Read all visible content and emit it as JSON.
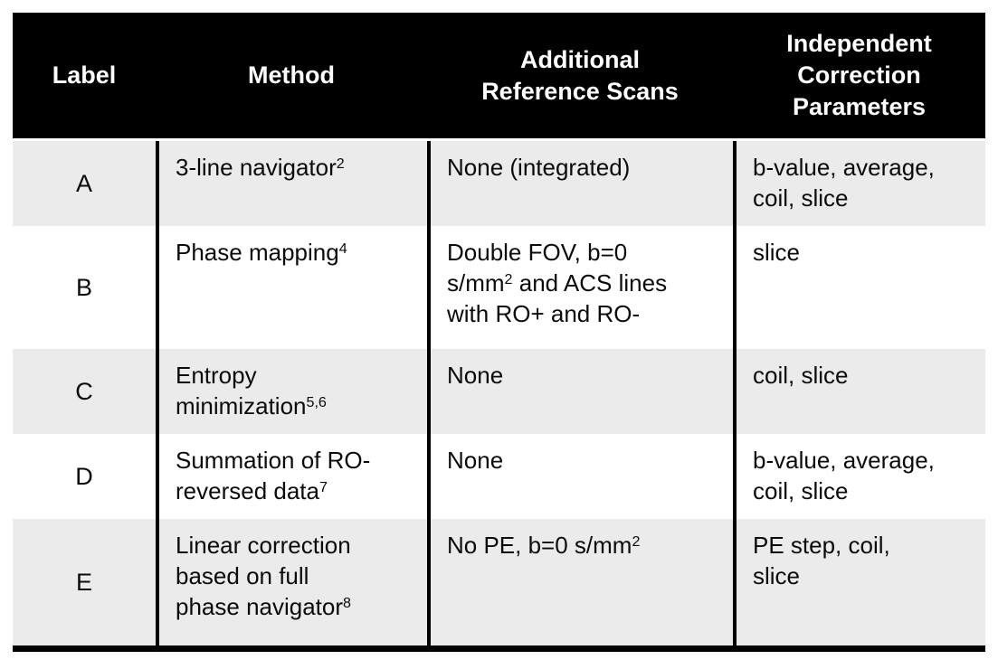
{
  "colors": {
    "header_bg": "#000000",
    "header_text": "#ffffff",
    "row_alt_bg": "#ebebeb",
    "row_bg": "#ffffff",
    "body_text": "#0b0b0b",
    "divider": "#000000"
  },
  "header": {
    "label": [
      [
        {
          "t": "Label"
        }
      ]
    ],
    "method": [
      [
        {
          "t": "Method"
        }
      ]
    ],
    "reference_scans": [
      [
        {
          "t": "Additional"
        }
      ],
      [
        {
          "t": "Reference Scans"
        }
      ]
    ],
    "correction_parameters": [
      [
        {
          "t": "Independent"
        }
      ],
      [
        {
          "t": "Correction"
        }
      ],
      [
        {
          "t": "Parameters"
        }
      ]
    ]
  },
  "rows": [
    {
      "label": "A",
      "method": [
        [
          {
            "t": "3-line navigator"
          },
          {
            "s": "2"
          }
        ]
      ],
      "reference_scans": [
        [
          {
            "t": "None (integrated)"
          }
        ]
      ],
      "correction_parameters": [
        [
          {
            "t": "b-value, average,"
          }
        ],
        [
          {
            "t": "coil, slice"
          }
        ]
      ]
    },
    {
      "label": "B",
      "method": [
        [
          {
            "t": "Phase mapping"
          },
          {
            "s": "4"
          }
        ]
      ],
      "reference_scans": [
        [
          {
            "t": "Double FOV, b=0"
          }
        ],
        [
          {
            "t": "s/mm"
          },
          {
            "s": "2"
          },
          {
            "t": " and ACS lines"
          }
        ],
        [
          {
            "t": "with RO+ and RO-"
          }
        ]
      ],
      "correction_parameters": [
        [
          {
            "t": "slice"
          }
        ]
      ]
    },
    {
      "label": "C",
      "method": [
        [
          {
            "t": "Entropy"
          }
        ],
        [
          {
            "t": "minimization"
          },
          {
            "s": "5,6"
          }
        ]
      ],
      "reference_scans": [
        [
          {
            "t": "None"
          }
        ]
      ],
      "correction_parameters": [
        [
          {
            "t": "coil, slice"
          }
        ]
      ]
    },
    {
      "label": "D",
      "method": [
        [
          {
            "t": "Summation of RO-"
          }
        ],
        [
          {
            "t": "reversed data"
          },
          {
            "s": "7"
          }
        ]
      ],
      "reference_scans": [
        [
          {
            "t": "None"
          }
        ]
      ],
      "correction_parameters": [
        [
          {
            "t": "b-value, average,"
          }
        ],
        [
          {
            "t": "coil, slice"
          }
        ]
      ]
    },
    {
      "label": "E",
      "method": [
        [
          {
            "t": "Linear correction"
          }
        ],
        [
          {
            "t": "based on full"
          }
        ],
        [
          {
            "t": "phase navigator"
          },
          {
            "s": "8"
          }
        ]
      ],
      "reference_scans": [
        [
          {
            "t": "No PE, b=0 s/mm"
          },
          {
            "s": "2"
          }
        ]
      ],
      "correction_parameters": [
        [
          {
            "t": "PE step, coil,"
          }
        ],
        [
          {
            "t": "slice"
          }
        ]
      ]
    }
  ]
}
